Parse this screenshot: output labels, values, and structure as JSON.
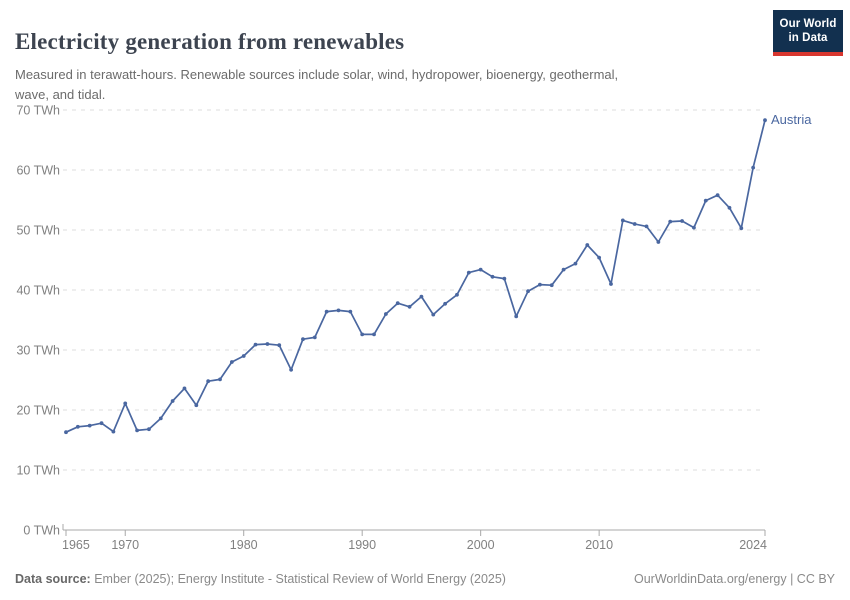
{
  "header": {
    "subtitle_line1": "Measured in terawatt-hours. Renewable sources include solar, wind, hydropower, bioenergy, geothermal,",
    "subtitle_line2": "wave, and tidal.",
    "logo": {
      "line1": "Our World",
      "line2": "in Data",
      "bg_color": "#12304f",
      "accent_color": "#d8362f"
    }
  },
  "chart_data": {
    "type": "line",
    "title": "Electricity generation from renewables",
    "subtitle": "Measured in terawatt-hours. Renewable sources include solar, wind, hydropower, bioenergy, geothermal, wave, and tidal.",
    "unit": "TWh",
    "entity_label": "Austria",
    "line_color": "#4a67a0",
    "grid": "horizontal dashed",
    "gridline_color": "#dcdcdc",
    "axis_color": "#a8a8a8",
    "tick_label_color": "#818181",
    "legend_position": "line-end label",
    "xlim": [
      1965,
      2024
    ],
    "ylim": [
      0,
      70
    ],
    "yticks": [
      0,
      10,
      20,
      30,
      40,
      50,
      60,
      70
    ],
    "xticks": [
      1965,
      1970,
      1980,
      1990,
      2000,
      2010,
      2024
    ],
    "x": [
      1965,
      1966,
      1967,
      1968,
      1969,
      1970,
      1971,
      1972,
      1973,
      1974,
      1975,
      1976,
      1977,
      1978,
      1979,
      1980,
      1981,
      1982,
      1983,
      1984,
      1985,
      1986,
      1987,
      1988,
      1989,
      1990,
      1991,
      1992,
      1993,
      1994,
      1995,
      1996,
      1997,
      1998,
      1999,
      2000,
      2001,
      2002,
      2003,
      2004,
      2005,
      2006,
      2007,
      2008,
      2009,
      2010,
      2011,
      2012,
      2013,
      2014,
      2015,
      2016,
      2017,
      2018,
      2019,
      2020,
      2021,
      2022,
      2023,
      2024
    ],
    "series": [
      {
        "name": "Austria",
        "values": [
          16.3,
          17.2,
          17.4,
          17.8,
          16.4,
          21.1,
          16.6,
          16.8,
          18.6,
          21.5,
          23.6,
          20.8,
          24.8,
          25.1,
          28.0,
          29.0,
          30.9,
          31.0,
          30.8,
          26.7,
          31.8,
          32.1,
          36.4,
          36.6,
          36.4,
          32.6,
          32.6,
          36.0,
          37.8,
          37.2,
          38.9,
          35.9,
          37.7,
          39.2,
          42.9,
          43.4,
          42.2,
          41.9,
          35.6,
          39.8,
          40.9,
          40.8,
          43.4,
          44.4,
          47.5,
          45.4,
          41.0,
          51.6,
          51.0,
          50.6,
          48.0,
          51.4,
          51.5,
          50.4,
          54.9,
          55.8,
          53.7,
          50.3,
          60.4,
          68.3
        ]
      }
    ]
  },
  "footer": {
    "datasource_label": "Data source:",
    "datasource_text": " Ember (2025); Energy Institute - Statistical Review of World Energy (2025)",
    "right_text": "OurWorldinData.org/energy | CC BY"
  }
}
